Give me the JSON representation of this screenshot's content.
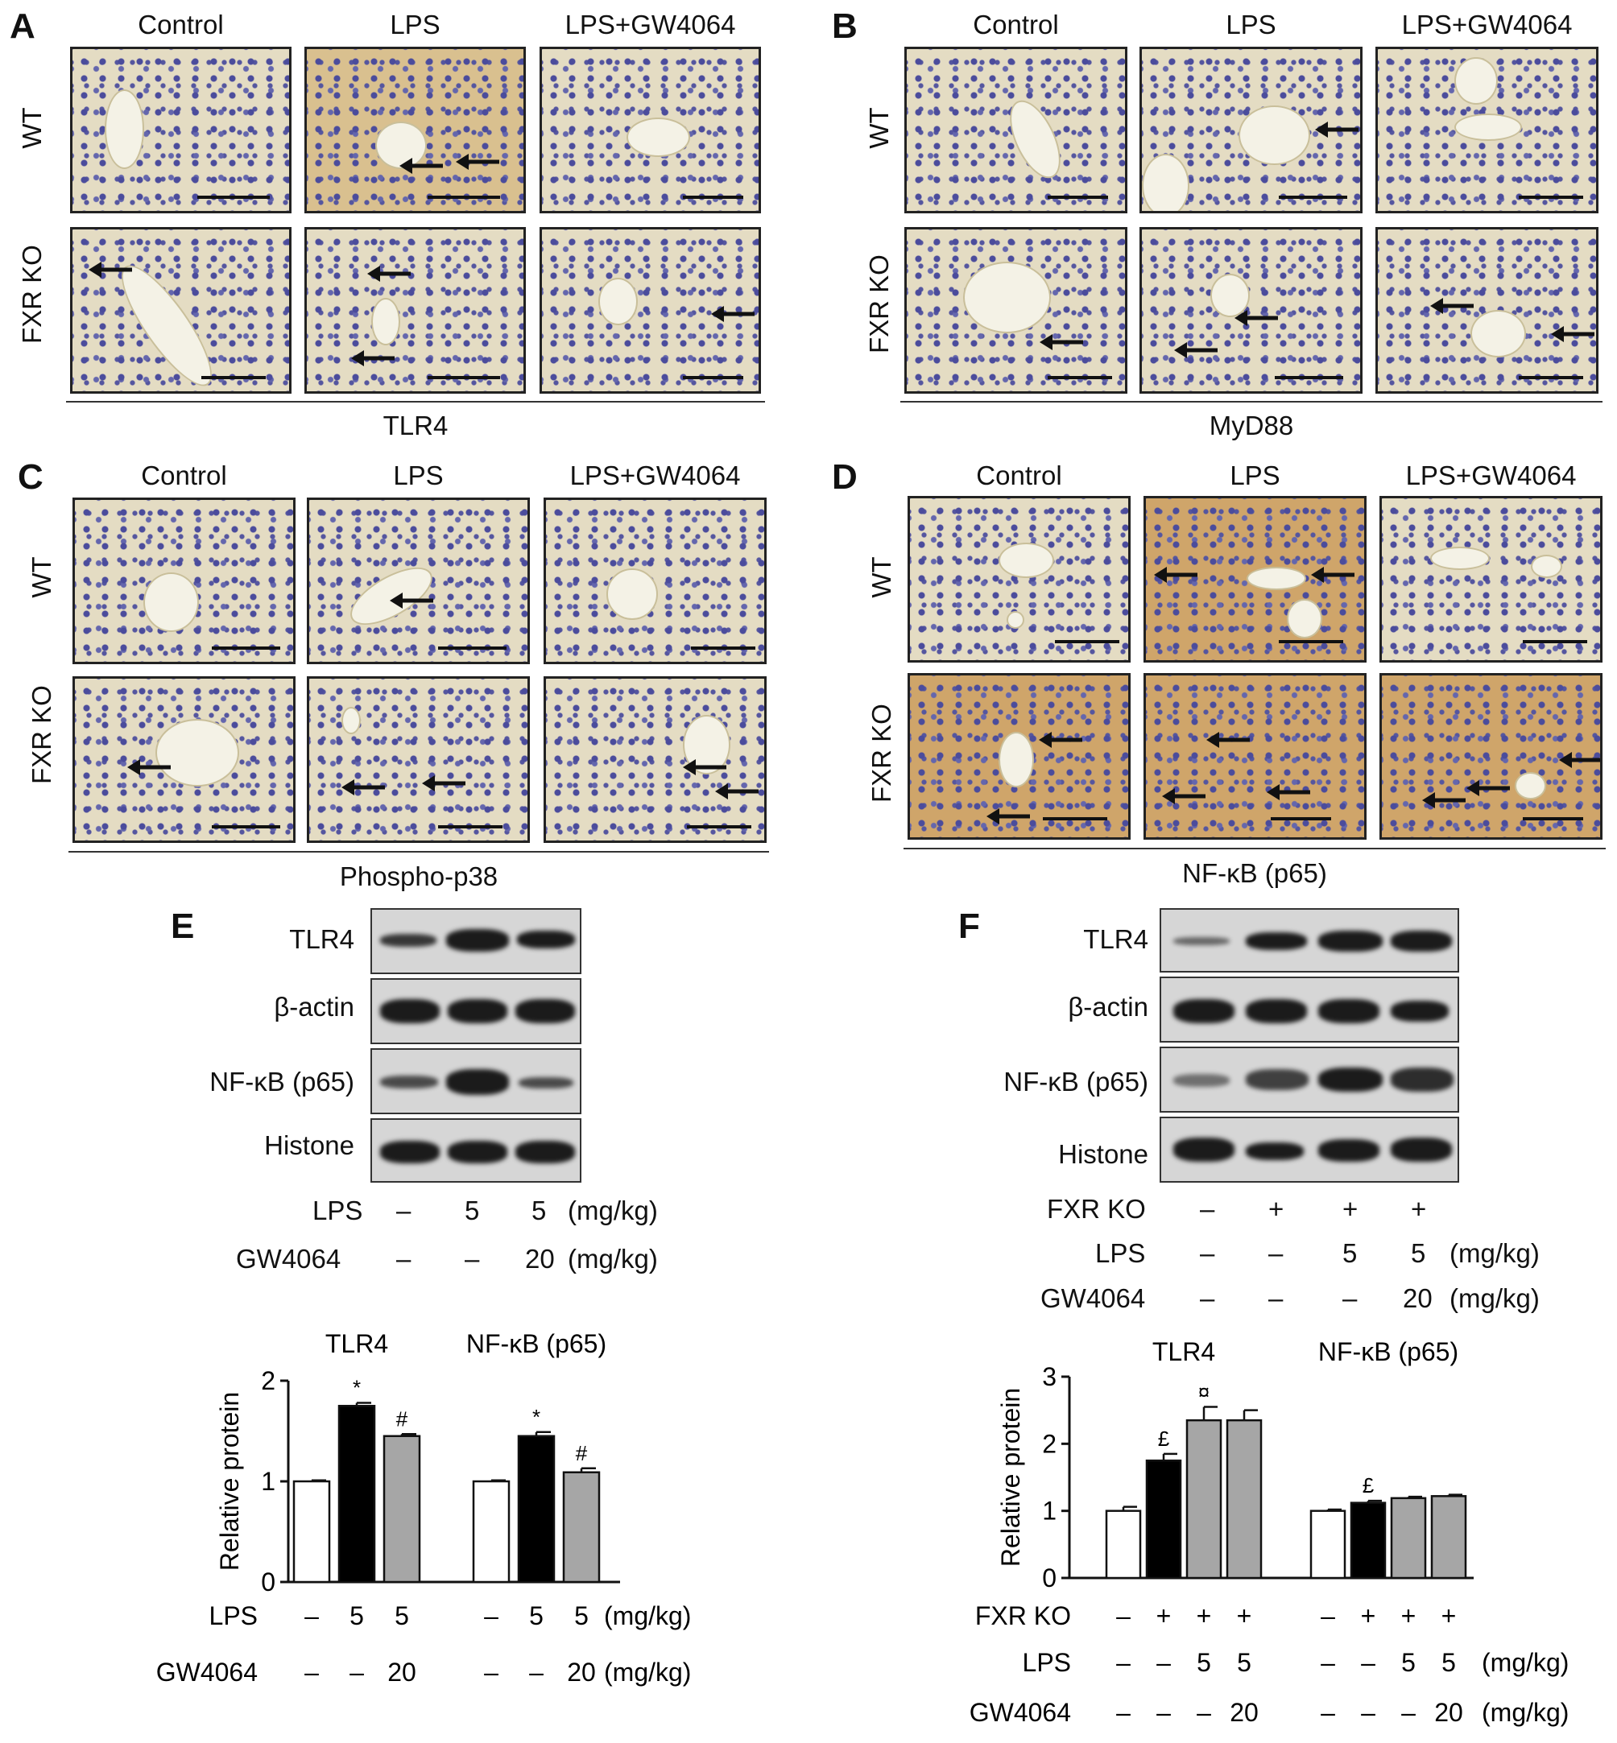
{
  "panels": [
    {
      "letter": "A",
      "marker": "TLR4",
      "cols": [
        "Control",
        "LPS",
        "LPS+GW4064"
      ],
      "rows": [
        "WT",
        "FXR KO"
      ]
    },
    {
      "letter": "B",
      "marker": "MyD88",
      "cols": [
        "Control",
        "LPS",
        "LPS+GW4064"
      ],
      "rows": [
        "WT",
        "FXR KO"
      ]
    },
    {
      "letter": "C",
      "marker": "Phospho-p38",
      "cols": [
        "Control",
        "LPS",
        "LPS+GW4064"
      ],
      "rows": [
        "WT",
        "FXR KO"
      ]
    },
    {
      "letter": "D",
      "marker": "NF-κB (p65)",
      "cols": [
        "Control",
        "LPS",
        "LPS+GW4064"
      ],
      "rows": [
        "WT",
        "FXR KO"
      ]
    }
  ],
  "blotE": {
    "letter": "E",
    "labels": [
      "TLR4",
      "β-actin",
      "NF-κB (p65)",
      "Histone"
    ],
    "cond": {
      "lps_label": "LPS",
      "lps": [
        "–",
        "5",
        "5"
      ],
      "lps_unit": "(mg/kg)",
      "gw_label": "GW4064",
      "gw": [
        "–",
        "–",
        "20"
      ],
      "gw_unit": "(mg/kg)"
    }
  },
  "blotF": {
    "letter": "F",
    "labels": [
      "TLR4",
      "β-actin",
      "NF-κB (p65)",
      "Histone"
    ],
    "cond": {
      "fxr_label": "FXR KO",
      "fxr": [
        "–",
        "+",
        "+",
        "+"
      ],
      "lps_label": "LPS",
      "lps": [
        "–",
        "–",
        "5",
        "5"
      ],
      "lps_unit": "(mg/kg)",
      "gw_label": "GW4064",
      "gw": [
        "–",
        "–",
        "–",
        "20"
      ],
      "gw_unit": "(mg/kg)"
    }
  },
  "chart_data": [
    {
      "type": "bar",
      "panel": "E",
      "ylabel": "Relative protein",
      "ylim": [
        0,
        2
      ],
      "yticks": [
        "0",
        "1",
        "2"
      ],
      "groups": [
        {
          "name": "TLR4",
          "values": [
            1.0,
            1.75,
            1.45
          ],
          "errors": [
            0.01,
            0.03,
            0.02
          ],
          "marks": [
            "",
            "*",
            "#"
          ]
        },
        {
          "name": "NF-κB (p65)",
          "values": [
            1.0,
            1.45,
            1.09
          ],
          "errors": [
            0.01,
            0.04,
            0.04
          ],
          "marks": [
            "",
            "*",
            "#"
          ]
        }
      ],
      "bar_colors": [
        "#ffffff",
        "#000000",
        "#a6a6a6"
      ],
      "cond": {
        "lps_label": "LPS",
        "lps": [
          "–",
          "5",
          "5"
        ],
        "lps_unit": "(mg/kg)",
        "gw_label": "GW4064",
        "gw": [
          "–",
          "–",
          "20"
        ],
        "gw_unit": "(mg/kg)"
      }
    },
    {
      "type": "bar",
      "panel": "F",
      "ylabel": "Relative protein",
      "ylim": [
        0,
        3
      ],
      "yticks": [
        "0",
        "1",
        "2",
        "3"
      ],
      "groups": [
        {
          "name": "TLR4",
          "values": [
            1.0,
            1.75,
            2.35,
            2.35
          ],
          "errors": [
            0.06,
            0.1,
            0.2,
            0.15
          ],
          "marks": [
            "",
            "£",
            "¤",
            ""
          ]
        },
        {
          "name": "NF-κB (p65)",
          "values": [
            1.0,
            1.12,
            1.19,
            1.22
          ],
          "errors": [
            0.02,
            0.03,
            0.02,
            0.02
          ],
          "marks": [
            "",
            "£",
            "",
            ""
          ]
        }
      ],
      "bar_colors": [
        "#ffffff",
        "#000000",
        "#a6a6a6",
        "#a6a6a6"
      ],
      "cond": {
        "fxr_label": "FXR KO",
        "fxr": [
          "–",
          "+",
          "+",
          "+"
        ],
        "lps_label": "LPS",
        "lps": [
          "–",
          "–",
          "5",
          "5"
        ],
        "lps_unit": "(mg/kg)",
        "gw_label": "GW4064",
        "gw": [
          "–",
          "–",
          "–",
          "20"
        ],
        "gw_unit": "(mg/kg)"
      }
    }
  ]
}
